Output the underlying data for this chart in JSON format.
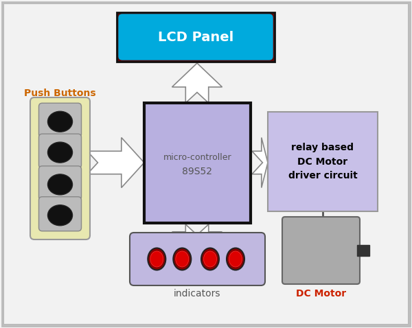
{
  "bg_color": "#f2f2f2",
  "border_color": "#bbbbbb",
  "lcd_outer_color": "#5a0a0a",
  "lcd_inner_color": "#00aadd",
  "lcd_text": "LCD Panel",
  "lcd_text_color": "white",
  "mc_fill": "#b8b0e0",
  "mc_border": "#111111",
  "mc_text1": "micro-controller",
  "mc_text2": "89S52",
  "mc_text_color": "#555555",
  "relay_fill": "#c8c0e8",
  "relay_border": "#999999",
  "relay_text": "relay based\nDC Motor\ndriver circuit",
  "relay_text_color": "black",
  "indicator_fill": "#c0b8e0",
  "indicator_border": "#555555",
  "indicator_text": "indicators",
  "indicator_led_color": "#dd0000",
  "pb_fill": "#e8e8b0",
  "pb_border": "#999999",
  "pb_text": "Push Buttons",
  "pb_text_color": "#cc6600",
  "motor_fill": "#aaaaaa",
  "motor_border": "#666666",
  "motor_text": "DC Motor",
  "motor_text_color": "#cc2200",
  "arrow_fill": "white",
  "arrow_edge": "#888888",
  "fig_width": 6.0,
  "fig_height": 4.78,
  "dpi": 100
}
